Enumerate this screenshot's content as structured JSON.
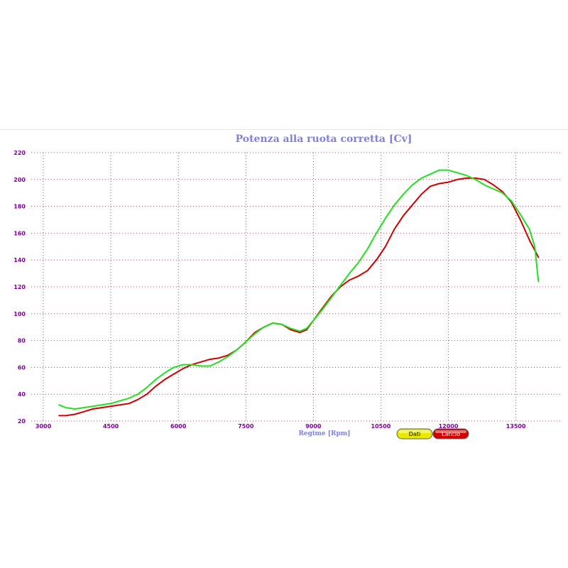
{
  "chart_data": {
    "type": "line",
    "title": "Potenza alla ruota corretta [Cv]",
    "xlabel": "Regime [Rpm]",
    "ylabel": "",
    "xlim": [
      2700,
      14500
    ],
    "ylim": [
      20,
      220
    ],
    "x_ticks": [
      3000,
      4500,
      6000,
      7500,
      9000,
      10500,
      12000,
      13500
    ],
    "y_ticks": [
      20,
      40,
      60,
      80,
      100,
      120,
      140,
      160,
      180,
      200,
      220
    ],
    "grid": true,
    "legend": [
      {
        "label": "Dati",
        "color": "#e8e800",
        "text_color": "#000000"
      },
      {
        "label": "Lancio",
        "color": "#d00000",
        "text_color": "#ffffff"
      }
    ],
    "series": [
      {
        "color": "#d00000",
        "points": [
          [
            3350,
            24
          ],
          [
            3500,
            24
          ],
          [
            3700,
            25
          ],
          [
            3900,
            27
          ],
          [
            4100,
            29
          ],
          [
            4300,
            30
          ],
          [
            4500,
            31
          ],
          [
            4700,
            32
          ],
          [
            4900,
            33
          ],
          [
            5100,
            36
          ],
          [
            5300,
            40
          ],
          [
            5500,
            46
          ],
          [
            5700,
            51
          ],
          [
            5900,
            55
          ],
          [
            6100,
            59
          ],
          [
            6300,
            62
          ],
          [
            6500,
            64
          ],
          [
            6700,
            66
          ],
          [
            6900,
            67
          ],
          [
            7100,
            69
          ],
          [
            7300,
            73
          ],
          [
            7500,
            79
          ],
          [
            7700,
            86
          ],
          [
            7900,
            90
          ],
          [
            8100,
            93
          ],
          [
            8300,
            92
          ],
          [
            8500,
            88
          ],
          [
            8700,
            86
          ],
          [
            8850,
            88
          ],
          [
            9000,
            95
          ],
          [
            9200,
            104
          ],
          [
            9400,
            113
          ],
          [
            9600,
            120
          ],
          [
            9800,
            125
          ],
          [
            10000,
            128
          ],
          [
            10200,
            132
          ],
          [
            10400,
            140
          ],
          [
            10600,
            150
          ],
          [
            10800,
            163
          ],
          [
            11000,
            173
          ],
          [
            11200,
            181
          ],
          [
            11400,
            189
          ],
          [
            11600,
            195
          ],
          [
            11800,
            197
          ],
          [
            12000,
            198
          ],
          [
            12200,
            200
          ],
          [
            12400,
            201
          ],
          [
            12600,
            201
          ],
          [
            12800,
            200
          ],
          [
            13000,
            196
          ],
          [
            13200,
            191
          ],
          [
            13400,
            183
          ],
          [
            13600,
            170
          ],
          [
            13800,
            155
          ],
          [
            14000,
            142
          ]
        ]
      },
      {
        "color": "#20e020",
        "points": [
          [
            3350,
            32
          ],
          [
            3500,
            30
          ],
          [
            3700,
            29
          ],
          [
            3900,
            30
          ],
          [
            4100,
            31
          ],
          [
            4300,
            32
          ],
          [
            4500,
            33
          ],
          [
            4700,
            35
          ],
          [
            4900,
            37
          ],
          [
            5100,
            40
          ],
          [
            5300,
            45
          ],
          [
            5500,
            51
          ],
          [
            5700,
            56
          ],
          [
            5900,
            60
          ],
          [
            6100,
            62
          ],
          [
            6300,
            62
          ],
          [
            6500,
            61
          ],
          [
            6700,
            61
          ],
          [
            6900,
            64
          ],
          [
            7100,
            68
          ],
          [
            7300,
            73
          ],
          [
            7500,
            79
          ],
          [
            7700,
            85
          ],
          [
            7900,
            90
          ],
          [
            8100,
            93
          ],
          [
            8300,
            92
          ],
          [
            8500,
            89
          ],
          [
            8700,
            87
          ],
          [
            8850,
            89
          ],
          [
            9000,
            95
          ],
          [
            9200,
            103
          ],
          [
            9400,
            112
          ],
          [
            9600,
            121
          ],
          [
            9800,
            130
          ],
          [
            10000,
            138
          ],
          [
            10200,
            148
          ],
          [
            10400,
            160
          ],
          [
            10600,
            171
          ],
          [
            10800,
            181
          ],
          [
            11000,
            189
          ],
          [
            11200,
            196
          ],
          [
            11400,
            201
          ],
          [
            11600,
            204
          ],
          [
            11800,
            207
          ],
          [
            12000,
            207
          ],
          [
            12200,
            205
          ],
          [
            12400,
            203
          ],
          [
            12600,
            200
          ],
          [
            12800,
            196
          ],
          [
            13000,
            193
          ],
          [
            13200,
            190
          ],
          [
            13400,
            184
          ],
          [
            13600,
            174
          ],
          [
            13800,
            163
          ],
          [
            13920,
            150
          ],
          [
            14000,
            124
          ]
        ]
      }
    ]
  }
}
